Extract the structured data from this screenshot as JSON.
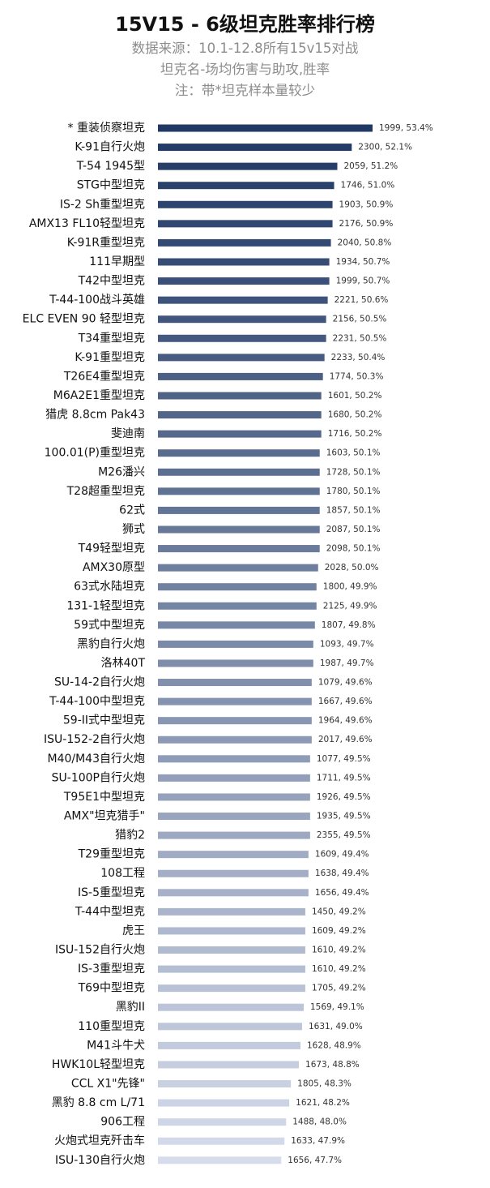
{
  "header": {
    "title": "15V15 - 6级坦克胜率排行榜",
    "subtitle_1": "数据来源：10.1-12.8所有15v15对战",
    "subtitle_2": "坦克名-场均伤害与助攻,胜率",
    "subtitle_3": "注：带*坦克样本量较少"
  },
  "chart_data": {
    "type": "bar",
    "orientation": "horizontal",
    "xlim": [
      40,
      53.4
    ],
    "grid": false,
    "legend": "none",
    "color_start": "#203864",
    "color_end": "#d6dcec",
    "categories": [
      "* 重装侦察坦克",
      "K-91自行火炮",
      "T-54 1945型",
      "STG中型坦克",
      "IS-2 Sh重型坦克",
      "AMX13 FL10轻型坦克",
      "K-91R重型坦克",
      "111早期型",
      "T42中型坦克",
      "T-44-100战斗英雄",
      "ELC EVEN 90 轻型坦克",
      "T34重型坦克",
      "K-91重型坦克",
      "T26E4重型坦克",
      "M6A2E1重型坦克",
      "猎虎 8.8cm Pak43",
      "斐迪南",
      "100.01(P)重型坦克",
      "M26潘兴",
      "T28超重型坦克",
      "62式",
      "狮式",
      "T49轻型坦克",
      "AMX30原型",
      "63式水陆坦克",
      "131-1轻型坦克",
      "59式中型坦克",
      "黑豹自行火炮",
      "洛林40T",
      "SU-14-2自行火炮",
      "T-44-100中型坦克",
      "59-II式中型坦克",
      "ISU-152-2自行火炮",
      "M40/M43自行火炮",
      "SU-100P自行火炮",
      "T95E1中型坦克",
      "AMX\"坦克猎手\"",
      "猎豹2",
      "T29重型坦克",
      "108工程",
      "IS-5重型坦克",
      "T-44中型坦克",
      "虎王",
      "ISU-152自行火炮",
      "IS-3重型坦克",
      "T69中型坦克",
      "黑豹II",
      "110重型坦克",
      "M41斗牛犬",
      "HWK10L轻型坦克",
      "CCL X1\"先锋\"",
      "黑豹 8.8 cm L/71",
      "906工程",
      "火炮式坦克歼击车",
      "ISU-130自行火炮"
    ],
    "series": [
      {
        "values": [
          53.4,
          52.1,
          51.2,
          51.0,
          50.9,
          50.9,
          50.8,
          50.7,
          50.7,
          50.6,
          50.5,
          50.5,
          50.4,
          50.3,
          50.2,
          50.2,
          50.2,
          50.1,
          50.1,
          50.1,
          50.1,
          50.1,
          50.1,
          50.0,
          49.9,
          49.9,
          49.8,
          49.7,
          49.7,
          49.6,
          49.6,
          49.6,
          49.6,
          49.5,
          49.5,
          49.5,
          49.5,
          49.5,
          49.4,
          49.4,
          49.4,
          49.2,
          49.2,
          49.2,
          49.2,
          49.2,
          49.1,
          49.0,
          48.9,
          48.8,
          48.3,
          48.2,
          48.0,
          47.9,
          47.7
        ],
        "damage": [
          1999,
          2300,
          2059,
          1746,
          1903,
          2176,
          2040,
          1934,
          1999,
          2221,
          2156,
          2231,
          2233,
          1774,
          1601,
          1680,
          1716,
          1603,
          1728,
          1780,
          1857,
          2087,
          2098,
          2028,
          1800,
          2125,
          1807,
          1093,
          1987,
          1079,
          1667,
          1964,
          2017,
          1077,
          1711,
          1926,
          1935,
          2355,
          1609,
          1638,
          1656,
          1450,
          1609,
          1610,
          1610,
          1705,
          1569,
          1631,
          1628,
          1673,
          1805,
          1621,
          1488,
          1633,
          1656
        ],
        "labels": [
          "1999, 53.4%",
          "2300, 52.1%",
          "2059, 51.2%",
          "1746, 51.0%",
          "1903, 50.9%",
          "2176, 50.9%",
          "2040, 50.8%",
          "1934, 50.7%",
          "1999, 50.7%",
          "2221, 50.6%",
          "2156, 50.5%",
          "2231, 50.5%",
          "2233, 50.4%",
          "1774, 50.3%",
          "1601, 50.2%",
          "1680, 50.2%",
          "1716, 50.2%",
          "1603, 50.1%",
          "1728, 50.1%",
          "1780, 50.1%",
          "1857, 50.1%",
          "2087, 50.1%",
          "2098, 50.1%",
          "2028, 50.0%",
          "1800, 49.9%",
          "2125, 49.9%",
          "1807, 49.8%",
          "1093, 49.7%",
          "1987, 49.7%",
          "1079, 49.6%",
          "1667, 49.6%",
          "1964, 49.6%",
          "2017, 49.6%",
          "1077, 49.5%",
          "1711, 49.5%",
          "1926, 49.5%",
          "1935, 49.5%",
          "2355, 49.5%",
          "1609, 49.4%",
          "1638, 49.4%",
          "1656, 49.4%",
          "1450, 49.2%",
          "1609, 49.2%",
          "1610, 49.2%",
          "1610, 49.2%",
          "1705, 49.2%",
          "1569, 49.1%",
          "1631, 49.0%",
          "1628, 48.9%",
          "1673, 48.8%",
          "1805, 48.3%",
          "1621, 48.2%",
          "1488, 48.0%",
          "1633, 47.9%",
          "1656, 47.7%"
        ]
      }
    ]
  }
}
